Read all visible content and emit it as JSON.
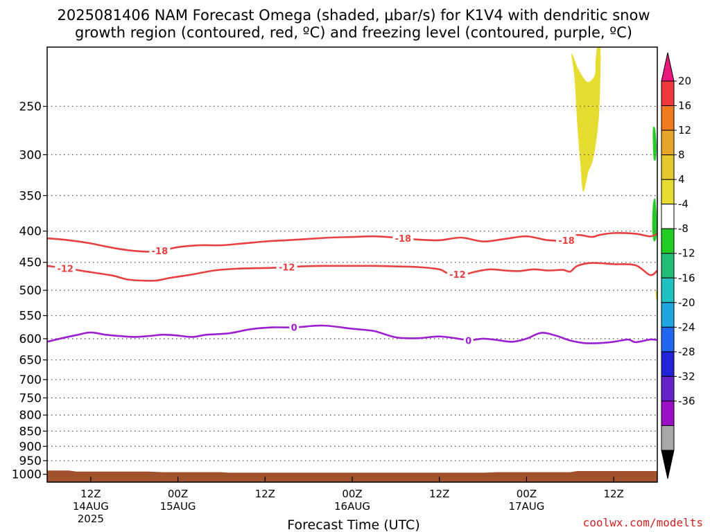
{
  "title_line1": "2025081406 NAM Forecast Omega (shaded, μbar/s) for K1V4 with dendritic snow",
  "title_line2": "growth region (contoured, red, ºC) and freezing level (contoured, purple, ºC)",
  "credit": "coolwx.com/modelts",
  "chart_data": {
    "type": "time-height cross section",
    "xlabel": "Forecast Time (UTC)",
    "ylabel": "",
    "x_range_hours": [
      0,
      84
    ],
    "y_scale": "log-pressure (top 200, bottom 1030 hPa)",
    "y_ticks": [
      250,
      300,
      350,
      400,
      450,
      500,
      550,
      600,
      650,
      700,
      750,
      800,
      850,
      900,
      950,
      1000
    ],
    "grid": "dotted horizontal lines at pressure ticks",
    "x_ticks": [
      {
        "hour": 6,
        "line1": "12Z",
        "line2": "14AUG",
        "line3": "2025"
      },
      {
        "hour": 18,
        "line1": "00Z",
        "line2": "15AUG",
        "line3": ""
      },
      {
        "hour": 30,
        "line1": "12Z",
        "line2": "",
        "line3": ""
      },
      {
        "hour": 42,
        "line1": "00Z",
        "line2": "16AUG",
        "line3": ""
      },
      {
        "hour": 54,
        "line1": "12Z",
        "line2": "",
        "line3": ""
      },
      {
        "hour": 66,
        "line1": "00Z",
        "line2": "17AUG",
        "line3": ""
      },
      {
        "hour": 78,
        "line1": "12Z",
        "line2": "",
        "line3": ""
      }
    ],
    "contours": [
      {
        "level": "-18",
        "color": "#e84040",
        "labels_at_hours": [
          15.5,
          49,
          71.5
        ],
        "points": [
          [
            0,
            411
          ],
          [
            3,
            414
          ],
          [
            6,
            419
          ],
          [
            9,
            426
          ],
          [
            12,
            431
          ],
          [
            15,
            432
          ],
          [
            18,
            425
          ],
          [
            21,
            422
          ],
          [
            24,
            422
          ],
          [
            27,
            419
          ],
          [
            30,
            416
          ],
          [
            33,
            414
          ],
          [
            36,
            412
          ],
          [
            39,
            410
          ],
          [
            42,
            409
          ],
          [
            45,
            408
          ],
          [
            48,
            410
          ],
          [
            51,
            413
          ],
          [
            54,
            414
          ],
          [
            57,
            410
          ],
          [
            60,
            416
          ],
          [
            63,
            412
          ],
          [
            66,
            408
          ],
          [
            69,
            414
          ],
          [
            72,
            414
          ],
          [
            73,
            406
          ],
          [
            75,
            409
          ],
          [
            76,
            406
          ],
          [
            78,
            403
          ],
          [
            81,
            404
          ],
          [
            83,
            408
          ],
          [
            84,
            404
          ]
        ]
      },
      {
        "level": "-12",
        "color": "#e84040",
        "labels_at_hours": [
          2.5,
          33,
          56.5
        ],
        "points": [
          [
            0,
            456
          ],
          [
            3,
            461
          ],
          [
            6,
            467
          ],
          [
            9,
            473
          ],
          [
            11,
            480
          ],
          [
            13,
            482
          ],
          [
            15,
            482
          ],
          [
            17,
            477
          ],
          [
            20,
            471
          ],
          [
            23,
            464
          ],
          [
            26,
            461
          ],
          [
            29,
            460
          ],
          [
            32,
            459
          ],
          [
            35,
            457
          ],
          [
            38,
            456
          ],
          [
            42,
            456
          ],
          [
            45,
            456
          ],
          [
            48,
            457
          ],
          [
            51,
            458
          ],
          [
            54,
            462
          ],
          [
            55,
            468
          ],
          [
            57,
            472
          ],
          [
            59,
            466
          ],
          [
            61,
            462
          ],
          [
            63,
            464
          ],
          [
            65,
            465
          ],
          [
            67,
            462
          ],
          [
            69,
            464
          ],
          [
            71,
            463
          ],
          [
            72,
            466
          ],
          [
            73,
            456
          ],
          [
            75,
            451
          ],
          [
            78,
            453
          ],
          [
            81,
            455
          ],
          [
            83,
            472
          ],
          [
            84,
            464
          ]
        ]
      },
      {
        "level": "0",
        "color": "#9b1fd0",
        "labels_at_hours": [
          34,
          58
        ],
        "points": [
          [
            0,
            607
          ],
          [
            2,
            599
          ],
          [
            4,
            592
          ],
          [
            6,
            586
          ],
          [
            8,
            591
          ],
          [
            10,
            594
          ],
          [
            12,
            596
          ],
          [
            14,
            594
          ],
          [
            16,
            591
          ],
          [
            18,
            593
          ],
          [
            20,
            596
          ],
          [
            22,
            591
          ],
          [
            25,
            588
          ],
          [
            28,
            579
          ],
          [
            31,
            575
          ],
          [
            34,
            575
          ],
          [
            38,
            571
          ],
          [
            42,
            578
          ],
          [
            45,
            583
          ],
          [
            48,
            597
          ],
          [
            51,
            599
          ],
          [
            54,
            595
          ],
          [
            57,
            601
          ],
          [
            58,
            604
          ],
          [
            60,
            600
          ],
          [
            62,
            603
          ],
          [
            64,
            607
          ],
          [
            66,
            600
          ],
          [
            68,
            587
          ],
          [
            70,
            593
          ],
          [
            72,
            604
          ],
          [
            74,
            610
          ],
          [
            76,
            610
          ],
          [
            78,
            607
          ],
          [
            80,
            602
          ],
          [
            81,
            608
          ],
          [
            83,
            602
          ],
          [
            84,
            603
          ]
        ]
      }
    ],
    "omega_shading": [
      {
        "level_range": "4 to 8",
        "color": "#e6dc32",
        "points": [
          [
            72.6,
            225
          ],
          [
            72.2,
            205
          ],
          [
            73.2,
            218
          ],
          [
            74.4,
            228
          ],
          [
            75.4,
            222
          ],
          [
            75.5,
            210
          ],
          [
            75.8,
            198
          ],
          [
            76.2,
            204
          ],
          [
            76.0,
            255
          ],
          [
            75.5,
            290
          ],
          [
            75.0,
            310
          ],
          [
            74.5,
            320
          ],
          [
            73.8,
            345
          ],
          [
            73.4,
            310
          ],
          [
            73.0,
            270
          ]
        ]
      },
      {
        "level_range": "-8 to -4",
        "color": "#28c828",
        "points": [
          [
            83.4,
            272
          ],
          [
            83.7,
            272
          ],
          [
            83.9,
            290
          ],
          [
            83.8,
            305
          ],
          [
            83.5,
            305
          ],
          [
            83.4,
            290
          ]
        ]
      },
      {
        "level_range": "-8 to -4",
        "color": "#28c828",
        "points": [
          [
            83.4,
            362
          ],
          [
            83.7,
            354
          ],
          [
            83.9,
            375
          ],
          [
            83.9,
            408
          ],
          [
            83.5,
            415
          ],
          [
            83.3,
            395
          ]
        ]
      },
      {
        "level_range": "4 to 8",
        "color": "#e6dc32",
        "points": [
          [
            83.8,
            500
          ],
          [
            84.0,
            505
          ],
          [
            83.9,
            520
          ],
          [
            83.8,
            510
          ]
        ]
      }
    ],
    "terrain": {
      "color": "#a0522d",
      "points": [
        [
          0,
          986
        ],
        [
          3,
          986
        ],
        [
          4,
          990
        ],
        [
          14,
          990
        ],
        [
          16,
          992
        ],
        [
          24,
          992
        ],
        [
          25,
          994
        ],
        [
          60,
          994
        ],
        [
          62,
          992
        ],
        [
          72,
          992
        ],
        [
          73,
          988
        ],
        [
          84,
          988
        ]
      ]
    }
  },
  "colorbar": {
    "labels": [
      "20",
      "16",
      "12",
      "8",
      "4",
      "-4",
      "-8",
      "-12",
      "-16",
      "-20",
      "-24",
      "-28",
      "-32",
      "-36"
    ],
    "colors": [
      "#ee3a3a",
      "#f07a22",
      "#e6a42a",
      "#e6c830",
      "#e6dc32",
      "#ffffff",
      "#22cc22",
      "#22bb77",
      "#22c2c2",
      "#22a6e0",
      "#2266f0",
      "#2222d6",
      "#6622c8",
      "#9a10c4",
      "#a8a8a8"
    ],
    "top_arrow_color": "#e8187c",
    "bottom_arrow_color": "#000000"
  }
}
